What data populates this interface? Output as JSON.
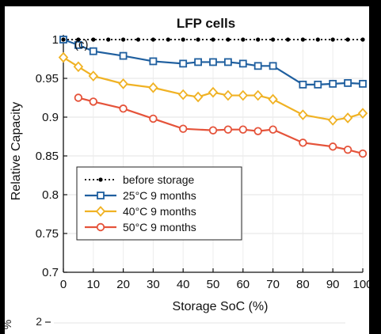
{
  "chart_data": {
    "type": "line",
    "title": "LFP cells",
    "panel_tag": "(c)",
    "xlabel": "Storage SoC (%)",
    "ylabel": "Relative Capacity",
    "xlim": [
      0,
      100
    ],
    "ylim": [
      0.7,
      1.0
    ],
    "xticks": [
      0,
      10,
      20,
      30,
      40,
      50,
      60,
      70,
      80,
      90,
      100
    ],
    "yticks": [
      0.7,
      0.75,
      0.8,
      0.85,
      0.9,
      0.95,
      1
    ],
    "ytick_labels": [
      "0.7",
      "0.75",
      "0.8",
      "0.85",
      "0.9",
      "0.95",
      "1"
    ],
    "grid": true,
    "legend_position": "bottom-left",
    "series": [
      {
        "name": "before storage",
        "color": "#000000",
        "marker": "dot",
        "line": "dotted",
        "x": [
          0,
          5,
          10,
          15,
          20,
          25,
          30,
          35,
          40,
          45,
          50,
          55,
          60,
          65,
          70,
          75,
          80,
          85,
          90,
          95,
          100
        ],
        "y": [
          1,
          1,
          1,
          1,
          1,
          1,
          1,
          1,
          1,
          1,
          1,
          1,
          1,
          1,
          1,
          1,
          1,
          1,
          1,
          1,
          1
        ]
      },
      {
        "name": "25°C  9 months",
        "color": "#1f5f9f",
        "marker": "square",
        "line": "solid",
        "x": [
          0,
          5,
          10,
          20,
          30,
          40,
          45,
          50,
          55,
          60,
          65,
          70,
          80,
          85,
          90,
          95,
          100
        ],
        "y": [
          1.0,
          0.993,
          0.985,
          0.979,
          0.972,
          0.969,
          0.971,
          0.971,
          0.971,
          0.969,
          0.966,
          0.966,
          0.942,
          0.942,
          0.943,
          0.944,
          0.943
        ]
      },
      {
        "name": "40°C  9 months",
        "color": "#f0b224",
        "marker": "diamond",
        "line": "solid",
        "x": [
          0,
          5,
          10,
          20,
          30,
          40,
          45,
          50,
          55,
          60,
          65,
          70,
          80,
          90,
          95,
          100
        ],
        "y": [
          0.977,
          0.965,
          0.953,
          0.943,
          0.938,
          0.929,
          0.926,
          0.932,
          0.928,
          0.928,
          0.928,
          0.923,
          0.903,
          0.896,
          0.899,
          0.905
        ]
      },
      {
        "name": "50°C  9 months",
        "color": "#e5533a",
        "marker": "circle",
        "line": "solid",
        "x": [
          5,
          10,
          20,
          30,
          40,
          50,
          55,
          60,
          65,
          70,
          80,
          90,
          95,
          100
        ],
        "y": [
          0.925,
          0.92,
          0.911,
          0.898,
          0.885,
          0.883,
          0.884,
          0.884,
          0.882,
          0.884,
          0.867,
          0.862,
          0.858,
          0.853
        ]
      }
    ]
  },
  "lower_panel": {
    "ylabel_fragment": "%",
    "first_tick": "2"
  }
}
